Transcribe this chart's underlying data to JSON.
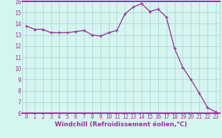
{
  "x": [
    0,
    1,
    2,
    3,
    4,
    5,
    6,
    7,
    8,
    9,
    10,
    11,
    12,
    13,
    14,
    15,
    16,
    17,
    18,
    19,
    20,
    21,
    22,
    23
  ],
  "y": [
    13.8,
    13.5,
    13.5,
    13.2,
    13.2,
    13.2,
    13.3,
    13.4,
    13.0,
    12.9,
    13.2,
    13.4,
    14.9,
    15.5,
    15.8,
    15.1,
    15.3,
    14.6,
    11.8,
    10.1,
    9.0,
    7.8,
    6.5,
    6.1
  ],
  "line_color": "#993399",
  "marker": "+",
  "marker_size": 3,
  "linewidth": 1.0,
  "background_color": "#d5f5f0",
  "grid_color": "#aacccc",
  "xlabel": "Windchill (Refroidissement éolien,°C)",
  "xlabel_fontsize": 6.5,
  "tick_fontsize": 5.5,
  "ylim": [
    6,
    16
  ],
  "yticks": [
    6,
    7,
    8,
    9,
    10,
    11,
    12,
    13,
    14,
    15,
    16
  ],
  "xticks": [
    0,
    1,
    2,
    3,
    4,
    5,
    6,
    7,
    8,
    9,
    10,
    11,
    12,
    13,
    14,
    15,
    16,
    17,
    18,
    19,
    20,
    21,
    22,
    23
  ],
  "spine_color": "#993399",
  "xlim_left": -0.5,
  "xlim_right": 23.5
}
